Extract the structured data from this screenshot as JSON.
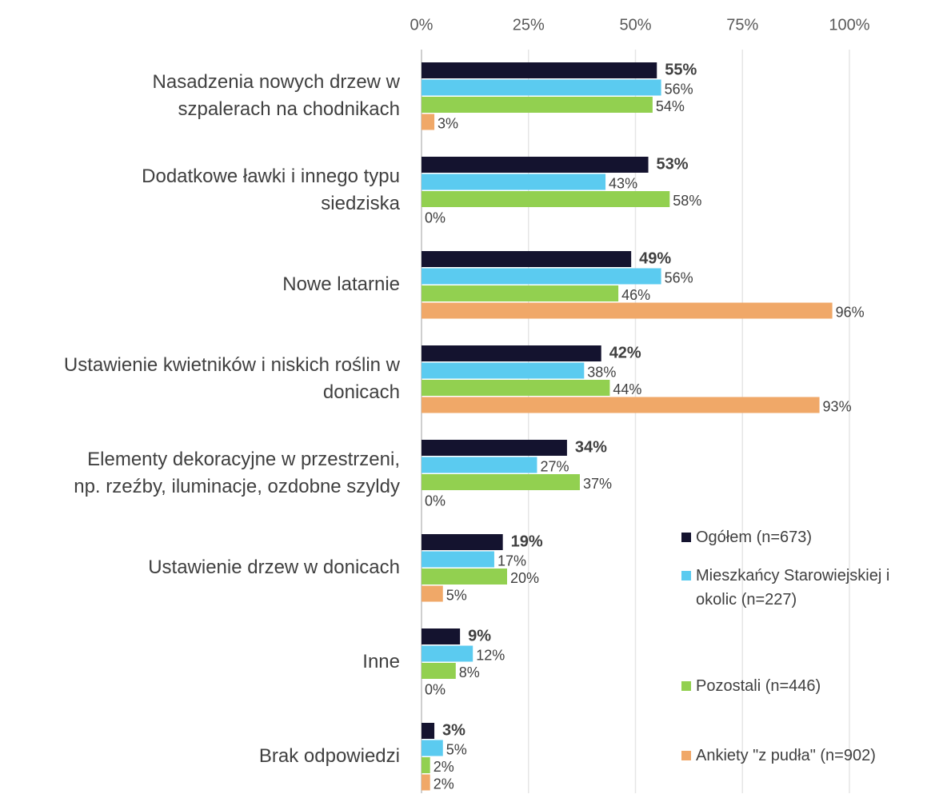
{
  "chart_data": {
    "type": "hbar",
    "categories": [
      "Nasadzenia nowych drzew w\nszpalerach na chodnikach",
      "Dodatkowe ławki i innego typu\nsiedziska",
      "Nowe latarnie",
      "Ustawienie kwietników i niskich roślin w\ndonicach",
      "Elementy dekoracyjne w przestrzeni,\nnp. rzeźby, iluminacje, ozdobne szyldy",
      "Ustawienie drzew w donicach",
      "Inne",
      "Brak odpowiedzi"
    ],
    "series": [
      {
        "name": "Ogółem (n=673)",
        "color": "#14132f",
        "values": [
          55,
          53,
          49,
          42,
          34,
          19,
          9,
          3
        ],
        "value_labels": [
          "55%",
          "53%",
          "49%",
          "42%",
          "34%",
          "19%",
          "9%",
          "3%"
        ]
      },
      {
        "name": "Mieszkańcy Starowiejskiej i\nokolic (n=227)",
        "color": "#5bcbf0",
        "values": [
          56,
          43,
          56,
          38,
          27,
          17,
          12,
          5
        ],
        "value_labels": [
          "56%",
          "43%",
          "56%",
          "38%",
          "27%",
          "17%",
          "12%",
          "5%"
        ]
      },
      {
        "name": "Pozostali (n=446)",
        "color": "#92d050",
        "values": [
          54,
          58,
          46,
          44,
          37,
          20,
          8,
          2
        ],
        "value_labels": [
          "54%",
          "58%",
          "46%",
          "44%",
          "37%",
          "20%",
          "8%",
          "2%"
        ]
      },
      {
        "name": "Ankiety \"z pudła\" (n=902)",
        "color": "#f0a868",
        "values": [
          3,
          0,
          96,
          93,
          0,
          5,
          0,
          2
        ],
        "value_labels": [
          "3%",
          "0%",
          "96%",
          "93%",
          "0%",
          "5%",
          "0%",
          "2%"
        ]
      }
    ],
    "xlim": [
      0,
      100
    ],
    "xticks": [
      {
        "value": 0,
        "label": "0%"
      },
      {
        "value": 25,
        "label": "25%"
      },
      {
        "value": 50,
        "label": "50%"
      },
      {
        "value": 75,
        "label": "75%"
      },
      {
        "value": 100,
        "label": "100%"
      }
    ],
    "grid": true,
    "legend": "right"
  }
}
